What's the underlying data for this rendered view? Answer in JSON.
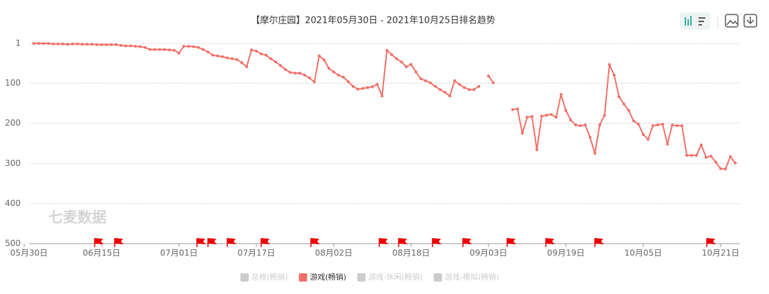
{
  "chart_data": {
    "type": "line",
    "title": "【摩尔庄园】2021年05月30日 - 2021年10月25日排名趋势",
    "watermark": "七麦数据",
    "categories": [
      "05月30日",
      null,
      null,
      null,
      null,
      null,
      null,
      null,
      null,
      null,
      null,
      null,
      null,
      null,
      null,
      null,
      "06月15日",
      null,
      null,
      null,
      null,
      null,
      null,
      null,
      null,
      null,
      null,
      null,
      null,
      null,
      null,
      null,
      "07月01日",
      null,
      null,
      null,
      null,
      null,
      null,
      null,
      null,
      null,
      null,
      null,
      null,
      null,
      null,
      null,
      "07月17日",
      null,
      null,
      null,
      null,
      null,
      null,
      null,
      null,
      null,
      null,
      null,
      null,
      null,
      null,
      null,
      "08月02日",
      null,
      null,
      null,
      null,
      null,
      null,
      null,
      null,
      null,
      null,
      null,
      null,
      null,
      null,
      null,
      "08月18日",
      null,
      null,
      null,
      null,
      null,
      null,
      null,
      null,
      null,
      null,
      null,
      null,
      null,
      null,
      null,
      "09月03日",
      null,
      null,
      null,
      null,
      null,
      null,
      null,
      null,
      null,
      null,
      null,
      null,
      null,
      null,
      null,
      "09月19日",
      null,
      null,
      null,
      null,
      null,
      null,
      null,
      null,
      null,
      null,
      null,
      null,
      null,
      null,
      null,
      "10月05日",
      null,
      null,
      null,
      null,
      null,
      null,
      null,
      null,
      null,
      null,
      null,
      null,
      null,
      null,
      null,
      "10月21日",
      null,
      null,
      null,
      null
    ],
    "series": [
      {
        "name": "总榜(畅销)",
        "color": "#cccccc",
        "visible": false,
        "values": null
      },
      {
        "name": "游戏(畅销)",
        "color": "#f07068",
        "visible": true,
        "values": [
          null,
          null,
          1,
          1,
          1,
          1,
          2,
          2,
          2,
          3,
          2,
          2,
          3,
          3,
          3,
          4,
          4,
          4,
          4,
          4,
          6,
          7,
          7,
          8,
          9,
          11,
          16,
          16,
          16,
          16,
          17,
          18,
          25,
          8,
          8,
          9,
          11,
          16,
          22,
          30,
          32,
          34,
          37,
          39,
          41,
          49,
          59,
          17,
          20,
          27,
          30,
          39,
          47,
          56,
          66,
          73,
          75,
          75,
          80,
          87,
          97,
          32,
          42,
          63,
          72,
          80,
          85,
          96,
          108,
          115,
          113,
          111,
          109,
          103,
          132,
          18,
          29,
          39,
          47,
          59,
          53,
          72,
          89,
          94,
          99,
          108,
          116,
          123,
          132,
          94,
          103,
          111,
          116,
          116,
          108,
          null,
          82,
          99,
          null,
          null,
          null,
          166,
          164,
          225,
          185,
          183,
          266,
          182,
          180,
          178,
          185,
          128,
          168,
          192,
          204,
          206,
          204,
          235,
          275,
          204,
          180,
          54,
          80,
          134,
          152,
          168,
          194,
          202,
          228,
          240,
          206,
          204,
          202,
          252,
          204,
          206,
          206,
          280,
          280,
          280,
          254,
          285,
          282,
          297,
          313,
          314,
          283,
          299,
          null
        ]
      },
      {
        "name": "游戏-休闲(畅销)",
        "color": "#cccccc",
        "visible": false,
        "values": null
      },
      {
        "name": "游戏-模拟(畅销)",
        "color": "#cccccc",
        "visible": false,
        "values": null
      }
    ],
    "ylim": [
      1,
      500
    ],
    "y_inverted": true,
    "yticks": [
      1,
      100,
      200,
      300,
      400,
      500
    ],
    "grid": true
  }
}
